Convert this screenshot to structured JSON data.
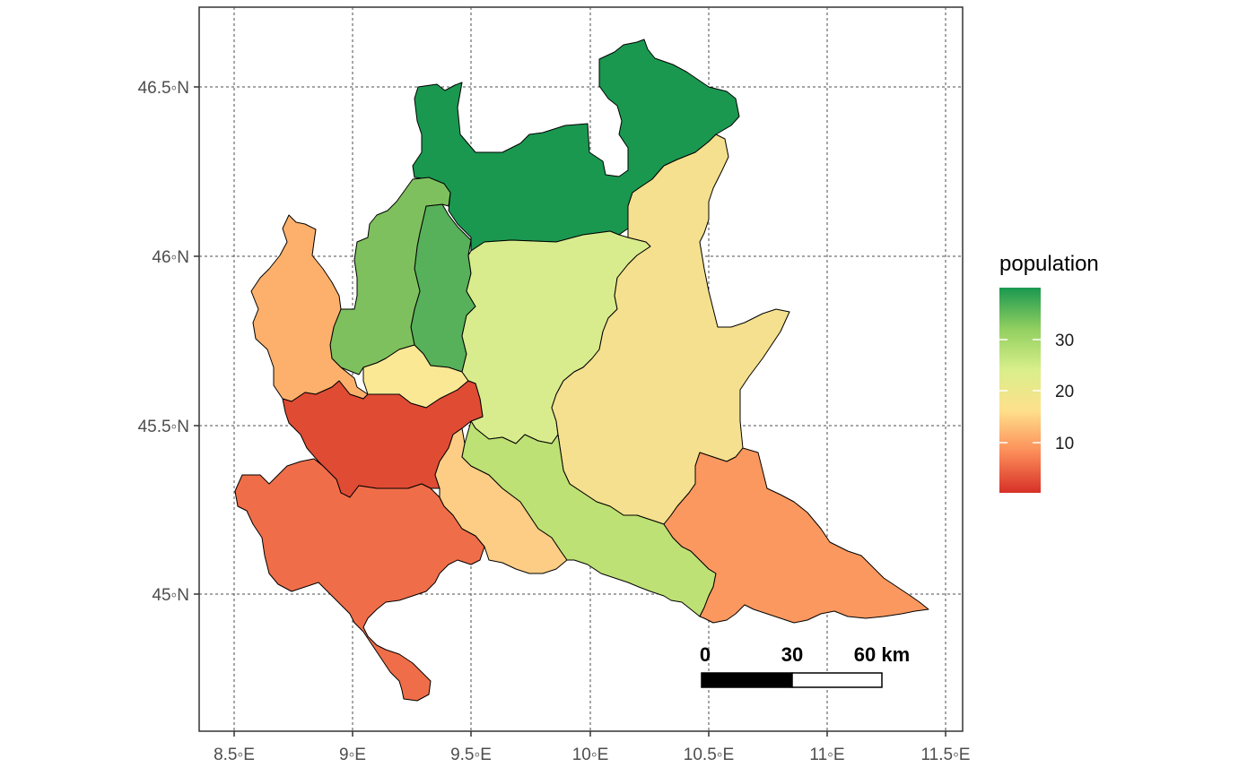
{
  "map": {
    "x_axis_ticks": [
      "8.5◦E",
      "9◦E",
      "9.5◦E",
      "10◦E",
      "10.5◦E",
      "11◦E",
      "11.5◦E"
    ],
    "y_axis_ticks": [
      "46.5◦N",
      "46◦N",
      "45.5◦N",
      "45◦N"
    ],
    "grid": true,
    "grid_style": "dotted",
    "legend": {
      "title": "population",
      "labels": [
        "30",
        "20",
        "10"
      ],
      "placement": "right",
      "colors": [
        "#1a9850",
        "#91cf60",
        "#d9ef8b",
        "#fee08b",
        "#fc8d59",
        "#d73027"
      ]
    },
    "scale_bar": {
      "labels": [
        "0",
        "30",
        "60 km"
      ]
    },
    "regions": [
      {
        "id": "sondrio",
        "color": "#1a9850"
      },
      {
        "id": "lecco",
        "color": "#57b05a"
      },
      {
        "id": "como",
        "color": "#7fc05e"
      },
      {
        "id": "varese",
        "color": "#fdb06c"
      },
      {
        "id": "monza",
        "color": "#fbe895"
      },
      {
        "id": "bergamo",
        "color": "#d8ec8d"
      },
      {
        "id": "brescia",
        "color": "#f4e08e"
      },
      {
        "id": "milano",
        "color": "#e04b34"
      },
      {
        "id": "pavia",
        "color": "#ef6e49"
      },
      {
        "id": "lodi",
        "color": "#fdcd85"
      },
      {
        "id": "cremona",
        "color": "#bde174"
      },
      {
        "id": "mantova",
        "color": "#fa9860"
      }
    ]
  }
}
